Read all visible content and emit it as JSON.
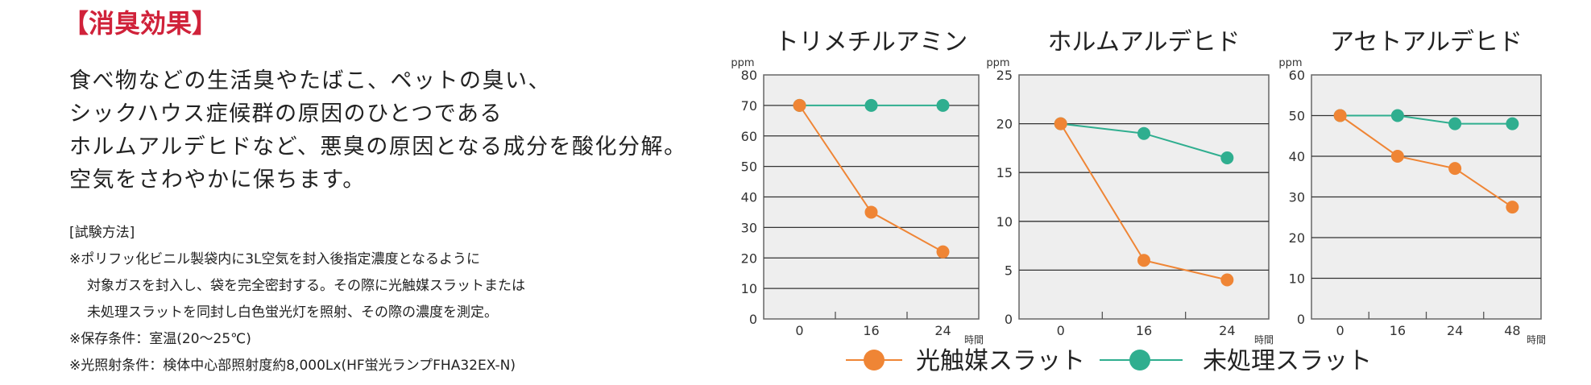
{
  "heading": "【消臭効果】",
  "paragraph": [
    "食べ物などの生活臭やたばこ、ペットの臭い、",
    "シックハウス症候群の原因のひとつである",
    "ホルムアルデヒドなど、悪臭の原因となる成分を酸化分解。",
    "空気をさわやかに保ちます。"
  ],
  "method": {
    "label": "[試験方法]",
    "lines": [
      "※ポリフッ化ビニル製袋内に3L空気を封入後指定濃度となるように",
      "対象ガスを封入し、袋を完全密封する。その際に光触媒スラットまたは",
      "未処理スラットを同封し白色蛍光灯を照射、その際の濃度を測定。",
      "※保存条件：室温(20〜25℃)",
      "※光照射条件：検体中心部照射度約8,000Lx(HF蛍光ランプFHA32EX-N)"
    ]
  },
  "legend": [
    {
      "name": "光触媒スラット",
      "color": "#ef8535"
    },
    {
      "name": "未処理スラット",
      "color": "#2fae8f"
    }
  ],
  "chart_data": [
    {
      "type": "line",
      "title": "トリメチルアミン",
      "ylabel": "ppm",
      "xlabel": "時間",
      "categories": [
        "0",
        "16",
        "24"
      ],
      "ylim": [
        0,
        80
      ],
      "yticks": [
        0,
        10,
        20,
        30,
        40,
        50,
        60,
        70,
        80
      ],
      "grid": true,
      "series": [
        {
          "name": "光触媒スラット",
          "values": [
            70,
            35,
            22
          ]
        },
        {
          "name": "未処理スラット",
          "values": [
            70,
            70,
            70
          ]
        }
      ]
    },
    {
      "type": "line",
      "title": "ホルムアルデヒド",
      "ylabel": "ppm",
      "xlabel": "時間",
      "categories": [
        "0",
        "16",
        "24"
      ],
      "ylim": [
        0,
        25
      ],
      "yticks": [
        0,
        5,
        10,
        15,
        20,
        25
      ],
      "grid": true,
      "series": [
        {
          "name": "光触媒スラット",
          "values": [
            20,
            6,
            4
          ]
        },
        {
          "name": "未処理スラット",
          "values": [
            20,
            19,
            16.5
          ]
        }
      ]
    },
    {
      "type": "line",
      "title": "アセトアルデヒド",
      "ylabel": "ppm",
      "xlabel": "時間",
      "categories": [
        "0",
        "16",
        "24",
        "48"
      ],
      "ylim": [
        0,
        60
      ],
      "yticks": [
        0,
        10,
        20,
        30,
        40,
        50,
        60
      ],
      "grid": true,
      "series": [
        {
          "name": "光触媒スラット",
          "values": [
            50,
            40,
            37,
            27.5
          ]
        },
        {
          "name": "未処理スラット",
          "values": [
            50,
            50,
            48,
            48
          ]
        }
      ]
    }
  ]
}
